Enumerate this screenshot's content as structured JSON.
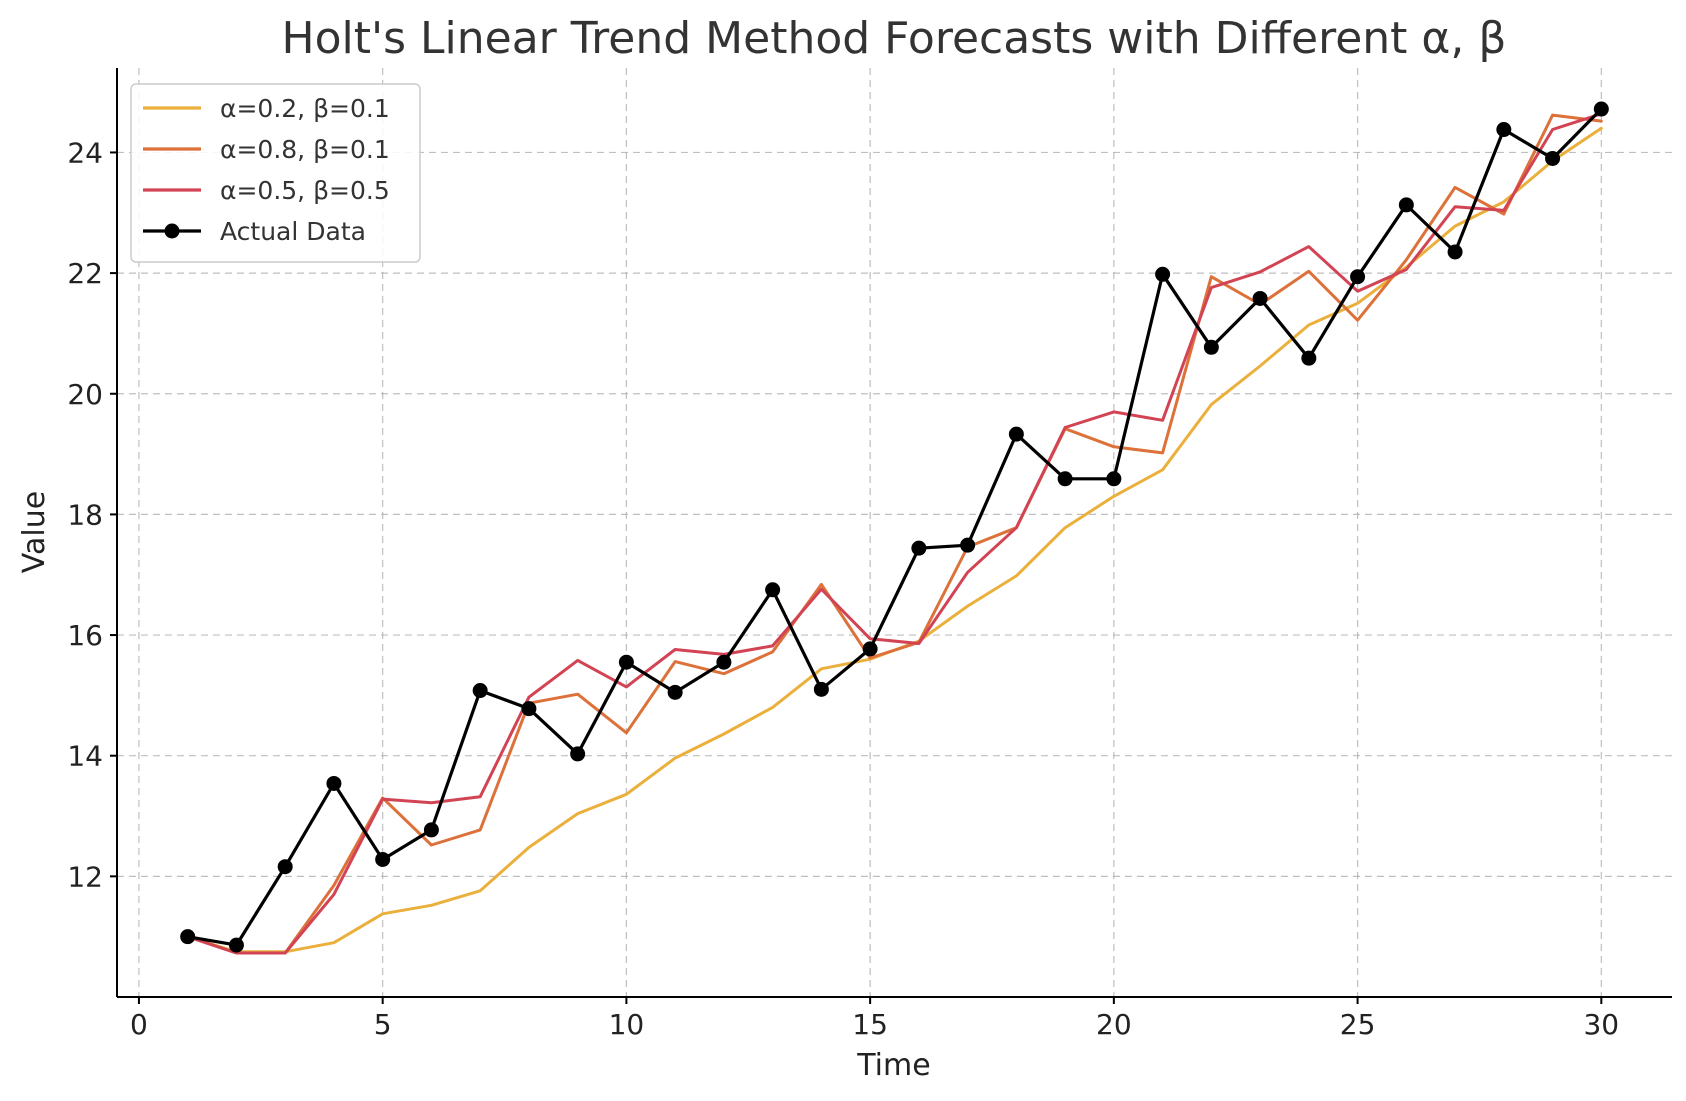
{
  "chart_data": {
    "type": "line",
    "title": "Holt's Linear Trend Method Forecasts with Different α, β",
    "xlabel": "Time",
    "ylabel": "Value",
    "xlim": [
      -0.45,
      31.45
    ],
    "ylim": [
      10.0,
      25.4
    ],
    "xticks": [
      0,
      5,
      10,
      15,
      20,
      25,
      30
    ],
    "yticks": [
      12,
      14,
      16,
      18,
      20,
      22,
      24
    ],
    "grid": true,
    "legend_position": "top-left",
    "x": [
      1,
      2,
      3,
      4,
      5,
      6,
      7,
      8,
      9,
      10,
      11,
      12,
      13,
      14,
      15,
      16,
      17,
      18,
      19,
      20,
      21,
      22,
      23,
      24,
      25,
      26,
      27,
      28,
      29,
      30
    ],
    "series": [
      {
        "name": "α=0.2, β=0.1",
        "color": "#ebb03c",
        "marker": false,
        "values": [
          11.0,
          10.75,
          10.75,
          10.9,
          11.38,
          11.52,
          11.76,
          12.48,
          13.04,
          13.36,
          13.96,
          14.36,
          14.8,
          15.44,
          15.6,
          15.9,
          16.48,
          16.98,
          17.78,
          18.3,
          18.74,
          19.82,
          20.46,
          21.14,
          21.5,
          22.1,
          22.78,
          23.18,
          23.86,
          24.4
        ]
      },
      {
        "name": "α=0.8, β=0.1",
        "color": "#dd713a",
        "marker": false,
        "values": [
          11.0,
          10.73,
          10.73,
          11.85,
          13.3,
          12.52,
          12.77,
          14.87,
          15.02,
          14.38,
          15.56,
          15.36,
          15.72,
          16.84,
          15.62,
          15.88,
          17.46,
          17.78,
          19.42,
          19.12,
          19.02,
          21.94,
          21.48,
          22.03,
          21.22,
          22.22,
          23.42,
          22.98,
          24.62,
          24.52
        ]
      },
      {
        "name": "α=0.5, β=0.5",
        "color": "#d24454",
        "marker": false,
        "values": [
          11.0,
          10.73,
          10.73,
          11.7,
          13.28,
          13.22,
          13.32,
          14.97,
          15.58,
          15.14,
          15.76,
          15.68,
          15.82,
          16.76,
          15.94,
          15.86,
          17.04,
          17.78,
          19.44,
          19.7,
          19.56,
          21.76,
          22.02,
          22.44,
          21.7,
          22.06,
          23.1,
          23.04,
          24.38,
          24.64
        ]
      },
      {
        "name": "Actual Data",
        "color": "#000000",
        "marker": true,
        "values": [
          11.0,
          10.86,
          12.16,
          13.54,
          12.28,
          12.77,
          15.08,
          14.78,
          14.03,
          15.55,
          15.05,
          15.55,
          16.75,
          15.1,
          15.77,
          17.44,
          17.49,
          19.33,
          18.59,
          18.59,
          21.98,
          20.77,
          21.58,
          20.59,
          21.94,
          23.13,
          22.35,
          24.38,
          23.9,
          24.72
        ]
      }
    ]
  }
}
